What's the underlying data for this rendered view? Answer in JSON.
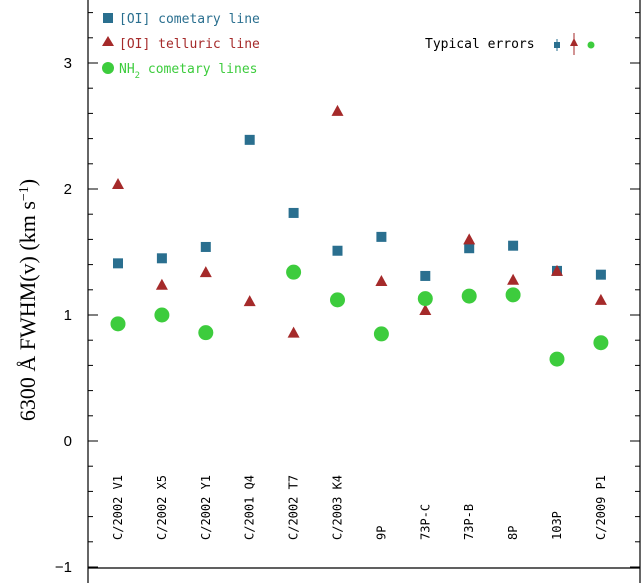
{
  "chart_data": {
    "type": "scatter",
    "ylabel_main": "6300 Å FWHM(v)  (km s",
    "ylabel_sup": "−1",
    "ylabel_close": ")",
    "ylim": [
      -1,
      3.5
    ],
    "yticks": [
      -1,
      0,
      1,
      2,
      3
    ],
    "ytick_labels": [
      "−1",
      "0",
      "1",
      "2",
      "3"
    ],
    "categories": [
      "C/2002 V1",
      "C/2002 X5",
      "C/2002 Y1",
      "C/2001 Q4",
      "C/2002 T7",
      "C/2003 K4",
      "9P",
      "73P-C",
      "73P-B",
      "8P",
      "103P",
      "C/2009 P1"
    ],
    "series": [
      {
        "name": "[OI] cometary line",
        "marker": "square",
        "color": "#2a6f8f",
        "values": [
          1.41,
          1.45,
          1.54,
          2.39,
          1.81,
          1.51,
          1.62,
          1.31,
          1.53,
          1.55,
          1.35,
          1.32
        ]
      },
      {
        "name": "[OI] telluric line",
        "marker": "triangle",
        "color": "#a52a2a",
        "values": [
          2.04,
          1.24,
          1.34,
          1.11,
          0.86,
          2.62,
          1.27,
          1.04,
          1.6,
          1.28,
          1.35,
          1.12
        ]
      },
      {
        "name": "NH2 cometary lines",
        "name_main": "NH",
        "name_sub": "2",
        "name_rest": " cometary lines",
        "marker": "circle",
        "color": "#3dcc3d",
        "values": [
          0.93,
          1.0,
          0.86,
          null,
          1.34,
          1.12,
          0.85,
          1.13,
          1.15,
          1.16,
          0.65,
          0.78
        ]
      }
    ],
    "legend_position": "top-left",
    "errors_label": "Typical errors",
    "grid": false
  }
}
